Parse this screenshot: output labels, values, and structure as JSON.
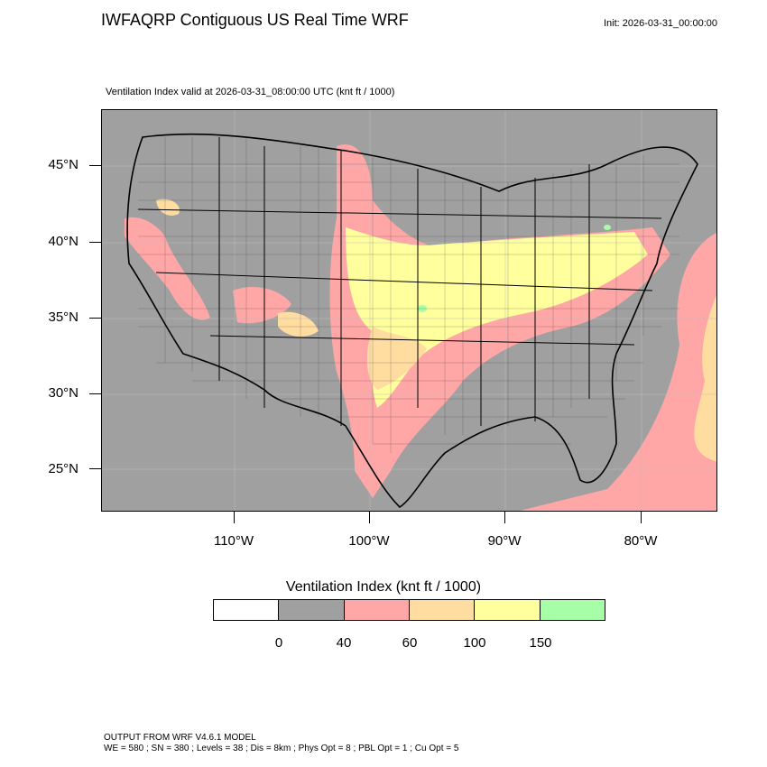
{
  "title": "IWFAQRP Contiguous US Real Time WRF",
  "init": "Init: 2026-03-31_00:00:00",
  "subtitle": "Ventilation Index valid at 2026-03-31_08:00:00 UTC   (knt ft / 1000)",
  "lat_labels": [
    "45°N",
    "40°N",
    "35°N",
    "30°N",
    "25°N"
  ],
  "lon_labels": [
    "110°W",
    "100°W",
    "90°W",
    "80°W"
  ],
  "legend": {
    "title": "Ventilation Index  (knt ft / 1000)",
    "colors": [
      "#ffffff",
      "#a0a0a0",
      "#ffa6a6",
      "#ffdca0",
      "#ffff9e",
      "#a6ffa6"
    ],
    "ticks": [
      "0",
      "40",
      "60",
      "100",
      "150"
    ]
  },
  "footer": {
    "line1": "OUTPUT FROM WRF V4.6.1 MODEL",
    "line2": "WE = 580 ; SN = 380 ; Levels = 38 ; Dis = 8km ; Phys Opt = 8 ; PBL Opt = 1 ; Cu Opt = 5"
  }
}
